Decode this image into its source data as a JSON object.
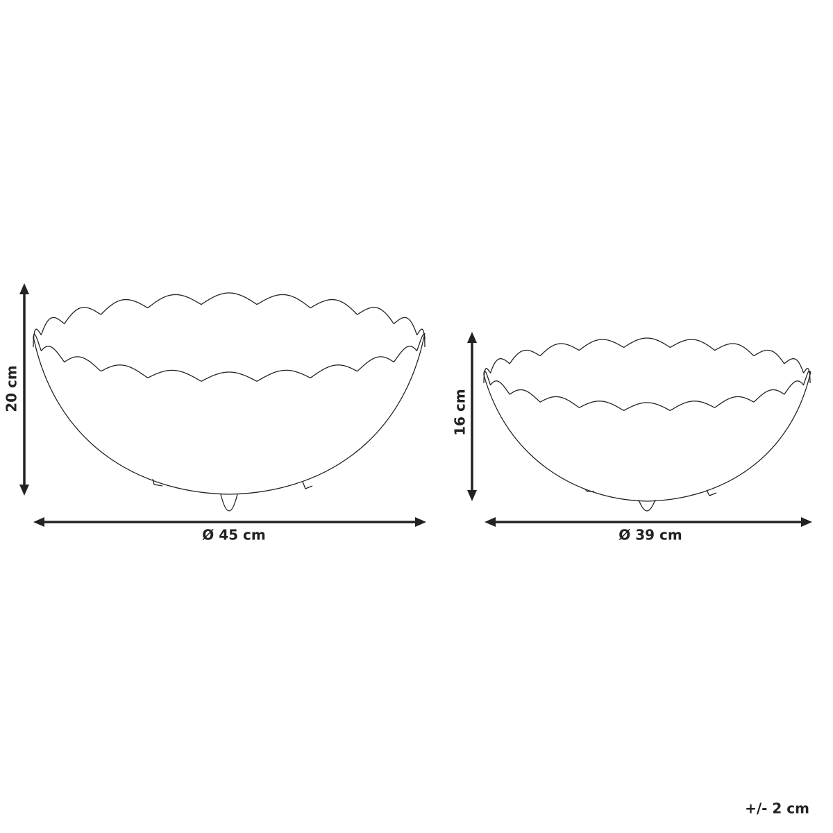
{
  "bowls": [
    {
      "height_label": "20 cm",
      "diameter_label": "Ø 45 cm"
    },
    {
      "height_label": "16 cm",
      "diameter_label": "Ø 39 cm"
    }
  ],
  "tolerance": "+/- 2 cm"
}
